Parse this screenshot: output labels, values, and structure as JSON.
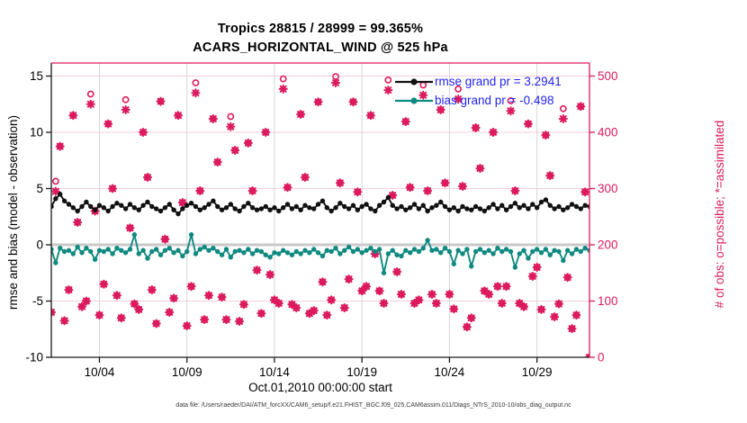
{
  "figure": {
    "title_line1": "Tropics 28815 / 28999 = 99.365%",
    "title_line2": "ACARS_HORIZONTAL_WIND @ 525 hPa",
    "footer": "data file: /Users/raeder/DAI/ATM_forcXX/CAM6_setup/f.e21.FHIST_BGC.f09_025.CAM6assim.011/Diags_NTrS_2010-10/obs_diag_output.nc"
  },
  "chart_data": {
    "type": "line",
    "title": "Tropics 28815 / 28999 = 99.365%",
    "subtitle": "ACARS_HORIZONTAL_WIND @ 525 hPa",
    "xlabel": "Oct.01,2010 00:00:00 start",
    "ylabel_left": "rmse and bias (model - observation)",
    "ylabel_right": "# of obs: o=possible; *=assimilated",
    "stats": {
      "n_possible": 28999,
      "n_assimilated": 28815,
      "pct_assimilated": "99.365%",
      "rmse_grand": 3.2941,
      "bias_grand": -0.498
    },
    "legend": [
      {
        "id": "rmse",
        "label": "rmse grand pr = 3.2941"
      },
      {
        "id": "bias",
        "label": "bias grand pr = -0.498"
      }
    ],
    "xlim_days": [
      1.25,
      32.0
    ],
    "ylim_left": [
      -10,
      15
    ],
    "ylim_right": [
      0,
      500
    ],
    "grid": true,
    "legend_position": "top-right-inside",
    "xticks": [
      {
        "day": 4,
        "label": "10/04"
      },
      {
        "day": 9,
        "label": "10/09"
      },
      {
        "day": 14,
        "label": "10/14"
      },
      {
        "day": 19,
        "label": "10/19"
      },
      {
        "day": 24,
        "label": "10/24"
      },
      {
        "day": 29,
        "label": "10/29"
      }
    ],
    "yticks_left": [
      15,
      10,
      5,
      0,
      -5,
      -10
    ],
    "yticks_right": [
      0,
      100,
      200,
      300,
      400,
      500
    ],
    "time_start_day": 1.25,
    "time_step_days": 0.25,
    "n_times": 124,
    "series": [
      {
        "name": "rmse",
        "axis": "left",
        "values": [
          3.4,
          4.1,
          4.5,
          3.9,
          3.6,
          3.3,
          3.0,
          3.4,
          3.8,
          3.4,
          3.1,
          3.5,
          3.3,
          3.0,
          3.4,
          3.7,
          3.5,
          3.2,
          3.6,
          3.3,
          3.1,
          3.5,
          3.8,
          3.4,
          3.2,
          3.0,
          3.3,
          3.6,
          3.1,
          2.75,
          3.2,
          3.5,
          3.7,
          3.4,
          3.1,
          3.3,
          3.6,
          3.9,
          3.4,
          3.1,
          3.3,
          3.6,
          3.2,
          3.0,
          3.4,
          3.7,
          3.3,
          3.1,
          3.2,
          3.4,
          3.1,
          3.3,
          3.0,
          3.3,
          3.6,
          3.2,
          3.4,
          3.1,
          3.5,
          3.3,
          3.2,
          3.6,
          3.9,
          3.3,
          3.0,
          3.3,
          3.7,
          3.4,
          3.2,
          3.5,
          3.1,
          3.4,
          3.6,
          3.2,
          3.0,
          3.5,
          3.8,
          4.2,
          3.5,
          3.2,
          3.4,
          3.1,
          3.3,
          3.6,
          3.2,
          3.5,
          3.0,
          3.3,
          3.5,
          3.8,
          3.4,
          3.1,
          3.3,
          3.0,
          3.4,
          3.2,
          3.1,
          3.4,
          3.2,
          3.0,
          3.3,
          3.6,
          3.2,
          3.5,
          3.1,
          3.4,
          3.7,
          3.3,
          3.5,
          3.2,
          3.6,
          3.3,
          3.8,
          4.0,
          3.5,
          3.2,
          3.4,
          3.1,
          3.3,
          3.6,
          3.4,
          3.2,
          3.5,
          3.4
        ]
      },
      {
        "name": "bias",
        "axis": "left",
        "values": [
          -0.4,
          -1.6,
          -0.3,
          -0.6,
          -0.5,
          -0.8,
          -0.2,
          -0.7,
          -0.3,
          -0.6,
          -1.3,
          -0.5,
          -0.6,
          -0.4,
          -0.8,
          -0.3,
          -0.5,
          -0.7,
          -0.4,
          0.9,
          -0.8,
          -0.5,
          -1.2,
          -0.6,
          -0.4,
          -0.9,
          -0.5,
          -0.3,
          -0.7,
          -0.5,
          -1.0,
          -0.6,
          0.9,
          -0.8,
          -0.4,
          -0.2,
          -0.5,
          -0.3,
          -0.6,
          -0.9,
          -0.4,
          -1.1,
          -0.6,
          -0.5,
          -0.7,
          -0.4,
          -0.8,
          -0.5,
          -0.6,
          -0.9,
          -1.1,
          -0.7,
          -0.8,
          -0.5,
          -0.7,
          -0.9,
          -0.6,
          -0.8,
          -0.5,
          -0.7,
          -0.4,
          -0.7,
          -1.0,
          -0.5,
          -0.6,
          -0.3,
          -0.8,
          -0.5,
          -0.2,
          -0.6,
          -0.4,
          -0.7,
          -0.5,
          -0.3,
          -0.6,
          -0.4,
          -2.5,
          -0.8,
          -0.5,
          -0.9,
          -1.0,
          -0.5,
          -0.7,
          -0.4,
          -0.6,
          -0.3,
          0.4,
          -0.5,
          -0.4,
          -0.7,
          -0.3,
          -0.6,
          -1.7,
          -0.5,
          -0.8,
          -0.4,
          -1.9,
          -0.6,
          -0.4,
          -0.7,
          -0.5,
          -0.8,
          -0.3,
          -0.6,
          -0.4,
          -0.6,
          -2.0,
          -0.8,
          -0.5,
          -1.2,
          -0.6,
          -0.4,
          -0.7,
          -0.4,
          -0.9,
          -0.5,
          -0.6,
          -1.4,
          -0.5,
          -0.8,
          -0.4,
          -0.6,
          -0.3,
          -0.5
        ]
      },
      {
        "name": "obs_possible",
        "axis": "right",
        "marker": "o",
        "values": [
          80,
          313,
          375,
          65,
          120,
          430,
          240,
          90,
          100,
          468,
          260,
          75,
          130,
          415,
          300,
          110,
          70,
          458,
          230,
          95,
          85,
          400,
          320,
          120,
          60,
          455,
          210,
          80,
          105,
          430,
          275,
          56,
          126,
          488,
          296,
          67,
          110,
          424,
          347,
          107,
          67,
          428,
          368,
          64,
          94,
          381,
          296,
          155,
          78,
          400,
          147,
          102,
          96,
          495,
          302,
          94,
          88,
          432,
          320,
          78,
          83,
          454,
          134,
          75,
          102,
          499,
          310,
          88,
          139,
          454,
          294,
          118,
          126,
          430,
          184,
          118,
          96,
          493,
          288,
          152,
          112,
          419,
          302,
          96,
          102,
          484,
          296,
          112,
          96,
          440,
          310,
          112,
          86,
          477,
          304,
          54,
          70,
          408,
          336,
          118,
          112,
          400,
          126,
          96,
          126,
          456,
          296,
          96,
          90,
          415,
          144,
          160,
          85,
          395,
          323,
          72,
          95,
          442,
          142,
          51,
          75,
          446,
          294,
          0
        ]
      },
      {
        "name": "obs_assimilated",
        "axis": "right",
        "marker": "*",
        "values": [
          80,
          295,
          375,
          65,
          120,
          430,
          240,
          90,
          100,
          450,
          260,
          75,
          130,
          415,
          300,
          110,
          70,
          440,
          230,
          95,
          85,
          400,
          320,
          120,
          60,
          455,
          210,
          80,
          105,
          430,
          275,
          56,
          126,
          470,
          296,
          67,
          110,
          424,
          347,
          107,
          67,
          410,
          368,
          64,
          94,
          381,
          296,
          155,
          78,
          400,
          147,
          102,
          96,
          477,
          302,
          94,
          88,
          432,
          320,
          78,
          83,
          454,
          134,
          75,
          102,
          488,
          310,
          88,
          139,
          454,
          294,
          118,
          126,
          430,
          184,
          118,
          96,
          475,
          288,
          152,
          112,
          419,
          302,
          96,
          102,
          466,
          296,
          112,
          96,
          440,
          310,
          112,
          86,
          459,
          304,
          54,
          70,
          408,
          336,
          118,
          112,
          400,
          126,
          96,
          126,
          438,
          296,
          96,
          90,
          415,
          144,
          160,
          85,
          395,
          323,
          72,
          95,
          424,
          142,
          51,
          75,
          446,
          294,
          0
        ]
      }
    ],
    "colors": {
      "rmse_line": "#111111",
      "bias_line": "#0f8a80",
      "obs_markers": "#dc1a5e",
      "right_axis": "#dc1a5e",
      "left_axis": "#1a1a1a",
      "legend_text": "#2323f0",
      "grid_horizontal": "#f6ccd8",
      "grid_vertical": "#d6d6d6",
      "zero_line": "#c9c9c9"
    }
  }
}
